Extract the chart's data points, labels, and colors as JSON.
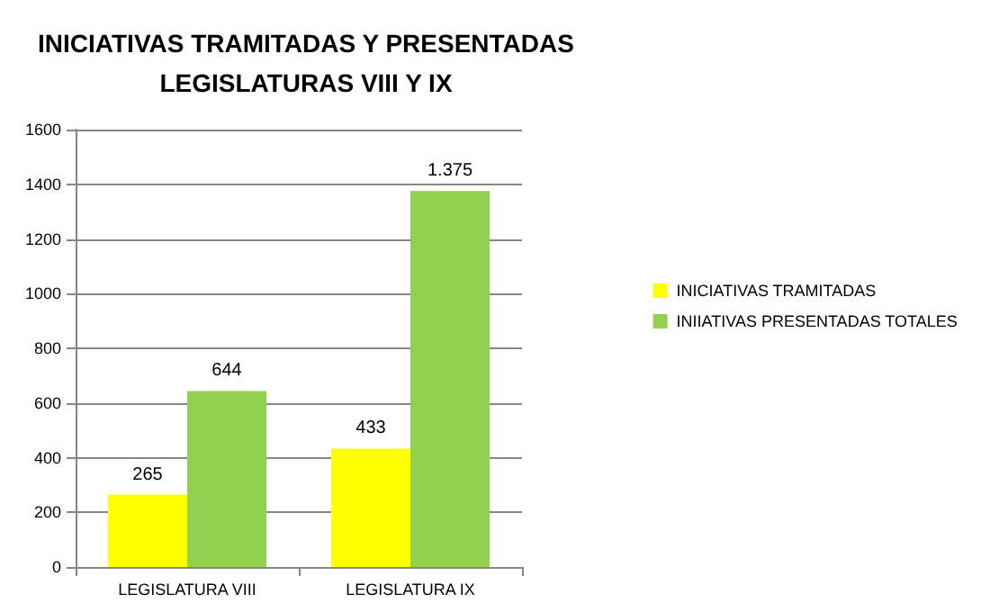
{
  "chart_data": {
    "type": "bar",
    "title": "INICIATIVAS TRAMITADAS Y PRESENTADAS\nLEGISLATURAS VIII Y IX",
    "categories": [
      "LEGISLATURA VIII",
      "LEGISLATURA IX"
    ],
    "series": [
      {
        "name": "INICIATIVAS TRAMITADAS",
        "color": "#ffff00",
        "values": [
          265,
          433
        ],
        "value_labels": [
          "265",
          "433"
        ]
      },
      {
        "name": "INIIATIVAS PRESENTADAS TOTALES",
        "color": "#92d050",
        "values": [
          644,
          1375
        ],
        "value_labels": [
          "644",
          "1.375"
        ]
      }
    ],
    "ylim": [
      0,
      1600
    ],
    "yticks": [
      0,
      200,
      400,
      600,
      800,
      1000,
      1200,
      1400,
      1600
    ],
    "grid": "y",
    "legend": "right"
  }
}
